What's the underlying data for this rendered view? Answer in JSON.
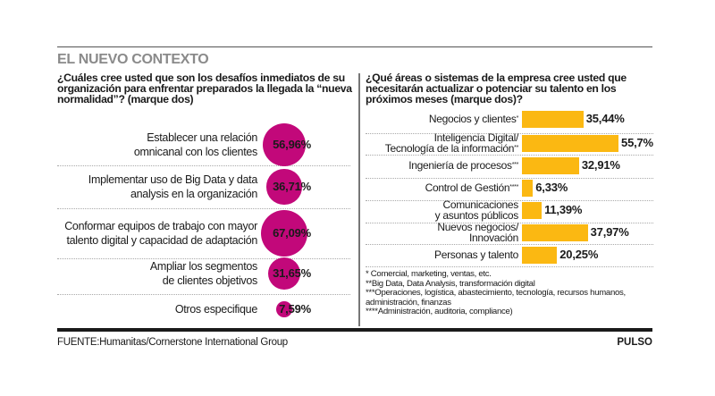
{
  "header": {
    "section_title": "EL NUEVO CONTEXTO"
  },
  "left_panel": {
    "question": "¿Cuáles cree usted que son los desafíos inmediatos de su organización para enfrentar preparados la llegada la “nueva normalidad”? (marque dos)"
  },
  "right_panel": {
    "question": "¿Qué áreas o sistemas de la empresa cree usted que necesitarán actualizar o potenciar su talento en los próximos meses (marque dos)?",
    "footnotes": [
      "* Comercial, marketing, ventas, etc.",
      "**Big Data, Data Analysis, transformación digital",
      "***Operaciones, logística, abastecimiento, tecnología, recursos humanos, administración, finanzas",
      "****Administración, auditoria, compliance)"
    ]
  },
  "footer": {
    "source": "FUENTE:Humanitas/Cornerstone International Group",
    "brand": "PULSO"
  },
  "colors": {
    "circle": "#c2087a",
    "bar": "#fbb812",
    "title_gray": "#8a8a8a"
  },
  "chart_data": [
    {
      "type": "bubble",
      "title": "¿Cuáles cree usted que son los desafíos inmediatos de su organización para enfrentar preparados la llegada la “nueva normalidad”? (marque dos)",
      "encoding": "circle area proportional to value",
      "categories": [
        [
          "Establecer una relación",
          "omnicanal con los clientes"
        ],
        [
          "Implementar uso de Big Data y data",
          "analysis en la organización"
        ],
        [
          "Conformar equipos de trabajo con mayor",
          "talento digital y capacidad de adaptación"
        ],
        [
          "Ampliar los segmentos",
          "de clientes objetivos"
        ],
        [
          "Otros especifique"
        ]
      ],
      "values": [
        56.96,
        36.71,
        67.09,
        31.65,
        7.59
      ],
      "labels": [
        "56,96%",
        "36,71%",
        "67,09%",
        "31,65%",
        "7,59%"
      ],
      "unit": "%"
    },
    {
      "type": "bar",
      "orientation": "horizontal",
      "title": "¿Qué áreas o sistemas de la empresa cree usted que necesitarán actualizar o potenciar su talento en los próximos meses (marque dos)?",
      "categories": [
        {
          "lines": [
            "Negocios y clientes"
          ],
          "mark": "*"
        },
        {
          "lines": [
            "Inteligencia Digital/",
            "Tecnología de la información"
          ],
          "mark": "**"
        },
        {
          "lines": [
            "Ingeniería de procesos"
          ],
          "mark": "***"
        },
        {
          "lines": [
            "Control de Gestión"
          ],
          "mark": "****"
        },
        {
          "lines": [
            "Comunicaciones",
            "y asuntos públicos"
          ],
          "mark": ""
        },
        {
          "lines": [
            "Nuevos negocios/",
            "Innovación"
          ],
          "mark": ""
        },
        {
          "lines": [
            "Personas y talento"
          ],
          "mark": ""
        }
      ],
      "values": [
        35.44,
        55.7,
        32.91,
        6.33,
        11.39,
        37.97,
        20.25
      ],
      "labels": [
        "35,44%",
        "55,7%",
        "32,91%",
        "6,33%",
        "11,39%",
        "37,97%",
        "20,25%"
      ],
      "unit": "%",
      "xlim": [
        0,
        100
      ],
      "grid": false
    }
  ]
}
